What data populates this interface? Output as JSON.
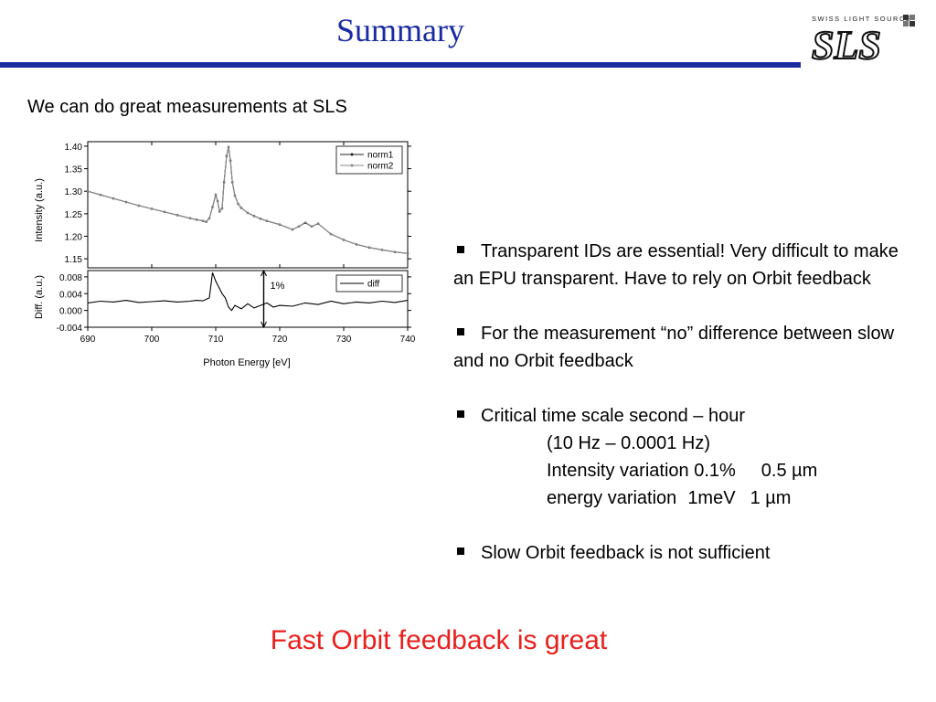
{
  "slide": {
    "title": "Summary",
    "logo": {
      "caption": "SWISS LIGHT SOURCE",
      "letters": "SLS"
    },
    "intro": "We can do great measurements at SLS",
    "bullets": [
      {
        "text": "Transparent IDs are essential! Very difficult to make an EPU transparent. Have to rely on Orbit feedback"
      },
      {
        "text": "For the measurement “no” difference between slow and no Orbit feedback"
      },
      {
        "text": "Critical time scale second – hour"
      },
      {
        "text": "Slow Orbit feedback is not sufficient"
      }
    ],
    "sub_lines": {
      "line1": "(10 Hz – 0.0001 Hz)",
      "line2_a": "Intensity variation 0.1%",
      "line2_b": "0.5 µm",
      "line3_a": "energy variation",
      "line3_b": "1meV",
      "line3_c": "1 µm"
    },
    "conclusion": "Fast Orbit feedback is great",
    "conclusion_color": "#e8201c",
    "title_color": "#1a2aa0"
  },
  "chart_data": {
    "type": "line",
    "xlabel": "Photon Energy [eV]",
    "x_ticks": [
      "690",
      "700",
      "710",
      "720",
      "730",
      "740"
    ],
    "xlim": [
      690,
      740
    ],
    "upper": {
      "ylabel": "Intensity (a.u.)",
      "ylim": [
        1.13,
        1.41
      ],
      "y_ticks": [
        "1.15",
        "1.20",
        "1.25",
        "1.30",
        "1.35",
        "1.40"
      ],
      "legend_position": "top-right",
      "series": [
        {
          "name": "norm1",
          "color": "#222222",
          "x": [
            690,
            692,
            694,
            696,
            698,
            700,
            702,
            704,
            706,
            707,
            708,
            708.5,
            709,
            709.5,
            710,
            710.3,
            710.6,
            711,
            711.3,
            711.7,
            712,
            712.3,
            712.6,
            713,
            713.5,
            714,
            715,
            716,
            717,
            718,
            720,
            722,
            723,
            724,
            725,
            726,
            728,
            730,
            732,
            734,
            736,
            738,
            740
          ],
          "y": [
            1.3,
            1.292,
            1.284,
            1.276,
            1.268,
            1.261,
            1.254,
            1.247,
            1.24,
            1.237,
            1.234,
            1.232,
            1.24,
            1.265,
            1.292,
            1.278,
            1.255,
            1.262,
            1.32,
            1.378,
            1.398,
            1.368,
            1.32,
            1.29,
            1.272,
            1.263,
            1.252,
            1.245,
            1.239,
            1.234,
            1.226,
            1.215,
            1.222,
            1.23,
            1.222,
            1.228,
            1.205,
            1.192,
            1.182,
            1.175,
            1.17,
            1.165,
            1.162
          ]
        },
        {
          "name": "norm2",
          "color": "#8a8a8a",
          "x": [
            690,
            692,
            694,
            696,
            698,
            700,
            702,
            704,
            706,
            707,
            708,
            708.5,
            709,
            709.5,
            710,
            710.3,
            710.6,
            711,
            711.3,
            711.7,
            712,
            712.3,
            712.6,
            713,
            713.5,
            714,
            715,
            716,
            717,
            718,
            720,
            722,
            723,
            724,
            725,
            726,
            728,
            730,
            732,
            734,
            736,
            738,
            740
          ],
          "y": [
            1.3,
            1.292,
            1.284,
            1.276,
            1.268,
            1.261,
            1.254,
            1.247,
            1.24,
            1.237,
            1.234,
            1.232,
            1.24,
            1.265,
            1.293,
            1.278,
            1.255,
            1.262,
            1.321,
            1.379,
            1.399,
            1.368,
            1.32,
            1.29,
            1.272,
            1.263,
            1.252,
            1.245,
            1.239,
            1.234,
            1.226,
            1.215,
            1.222,
            1.231,
            1.222,
            1.228,
            1.205,
            1.192,
            1.182,
            1.175,
            1.17,
            1.165,
            1.162
          ]
        }
      ]
    },
    "lower": {
      "ylabel": "Diff. (a.u.)",
      "ylim": [
        -0.004,
        0.0095
      ],
      "y_ticks": [
        "0.008",
        "0.004",
        "0.000",
        "-0.004"
      ],
      "annotation": "1%",
      "legend_position": "top-right",
      "series": [
        {
          "name": "diff",
          "color": "#000000",
          "x": [
            690,
            692,
            694,
            696,
            698,
            700,
            702,
            704,
            706,
            707,
            708,
            709,
            709.5,
            710,
            710.5,
            711,
            711.5,
            712,
            712.5,
            713,
            714,
            715,
            716,
            717,
            718,
            719,
            720,
            722,
            724,
            726,
            728,
            730,
            732,
            734,
            736,
            738,
            740
          ],
          "y": [
            0.0018,
            0.0022,
            0.002,
            0.0024,
            0.0019,
            0.0021,
            0.0023,
            0.002,
            0.0022,
            0.0024,
            0.0023,
            0.003,
            0.009,
            0.007,
            0.0055,
            0.004,
            0.003,
            0.0008,
            0.0,
            0.0012,
            0.0004,
            0.0016,
            0.0006,
            0.0012,
            0.0018,
            0.0008,
            0.0012,
            0.001,
            0.0018,
            0.0014,
            0.0022,
            0.0016,
            0.002,
            0.0018,
            0.0022,
            0.0019,
            0.0024
          ]
        }
      ]
    }
  }
}
